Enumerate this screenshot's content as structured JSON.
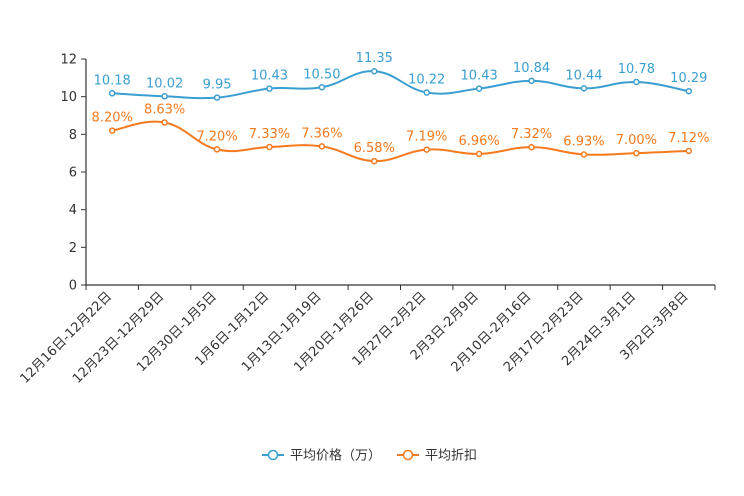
{
  "chart_data": {
    "type": "line",
    "categories": [
      "12月16日-12月22日",
      "12月23日-12月29日",
      "12月30日-1月5日",
      "1月6日-1月12日",
      "1月13日-1月19日",
      "1月20日-1月26日",
      "1月27日-2月2日",
      "2月3日-2月9日",
      "2月10日-2月16日",
      "2月17日-2月23日",
      "2月24日-3月1日",
      "3月2日-3月8日"
    ],
    "ylim": [
      0,
      12
    ],
    "yticks": [
      "0",
      "2",
      "4",
      "6",
      "8",
      "10",
      "12"
    ],
    "series": [
      {
        "name": "平均价格（万）",
        "color": "#3a9fd0",
        "values": [
          10.18,
          10.02,
          9.95,
          10.43,
          10.5,
          11.35,
          10.22,
          10.43,
          10.84,
          10.44,
          10.78,
          10.29
        ],
        "labels": [
          "10.18",
          "10.02",
          "9.95",
          "10.43",
          "10.50",
          "11.35",
          "10.22",
          "10.43",
          "10.84",
          "10.44",
          "10.78",
          "10.29"
        ]
      },
      {
        "name": "平均折扣",
        "color": "#f47a1f",
        "values": [
          8.2,
          8.63,
          7.2,
          7.33,
          7.36,
          6.58,
          7.19,
          6.96,
          7.32,
          6.93,
          7.0,
          7.12
        ],
        "labels": [
          "8.20%",
          "8.63%",
          "7.20%",
          "7.33%",
          "7.36%",
          "6.58%",
          "7.19%",
          "6.96%",
          "7.32%",
          "6.93%",
          "7.00%",
          "7.12%"
        ]
      }
    ]
  }
}
